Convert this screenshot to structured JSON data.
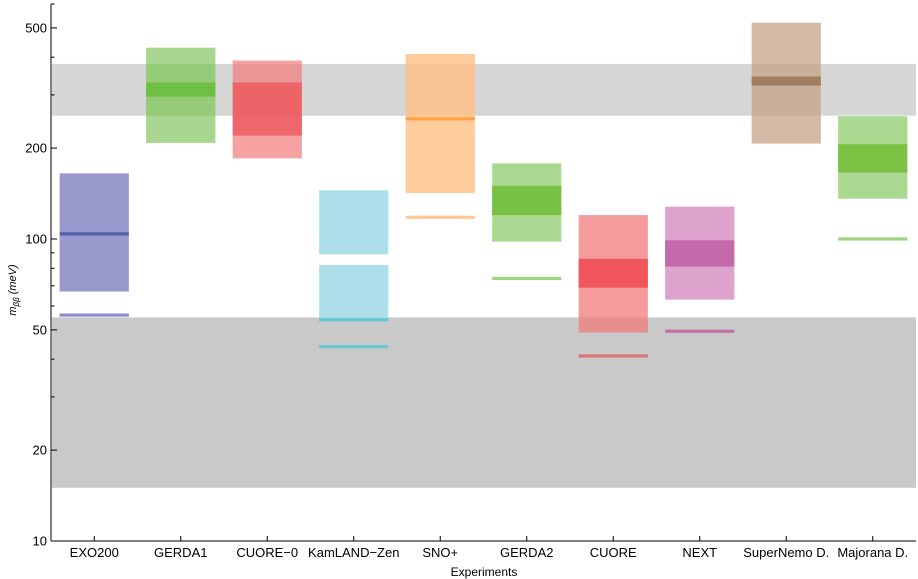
{
  "chart_data": {
    "type": "bar",
    "title": "",
    "xlabel": "Experiments",
    "ylabel": {
      "main": "m",
      "sub": "ββ",
      "units": " (meV)"
    },
    "yscale": "log",
    "ylim": [
      10,
      600
    ],
    "yticks": [
      10,
      20,
      50,
      100,
      200,
      500
    ],
    "grid": false,
    "legend": "none",
    "categories": [
      "EXO200",
      "GERDA1",
      "CUORE−0",
      "KamLAND−Zen",
      "SNO+",
      "GERDA2",
      "CUORE",
      "NEXT",
      "SuperNemo D.",
      "Majorana D."
    ],
    "reference_bands": [
      {
        "low": 256,
        "high": 380,
        "color": "#d6d6d6"
      },
      {
        "low": 15,
        "high": 55,
        "color": "#c9c9c9"
      }
    ],
    "series": [
      {
        "category": "EXO200",
        "color": "#7f7fc0",
        "bands": [
          {
            "low": 67,
            "high": 165,
            "opacity": 0.8
          }
        ],
        "lines": [
          {
            "value": 104,
            "color": "#4b5aa8"
          },
          {
            "value": 56,
            "color": "#7f7fc0"
          }
        ]
      },
      {
        "category": "GERDA1",
        "color": "#8cca6b",
        "bands": [
          {
            "low": 208,
            "high": 430,
            "opacity": 0.75
          },
          {
            "low": 255,
            "high": 380,
            "opacity": 0.5
          },
          {
            "low": 296,
            "high": 330,
            "color": "#6cbf3f",
            "opacity": 0.95
          }
        ],
        "lines": []
      },
      {
        "category": "CUORE−0",
        "color": "#f27a7a",
        "bands": [
          {
            "low": 185,
            "high": 390,
            "opacity": 0.7
          },
          {
            "low": 220,
            "high": 330,
            "color": "#ec4e52",
            "opacity": 0.7
          }
        ],
        "lines": []
      },
      {
        "category": "KamLAND−Zen",
        "color": "#9dd9e6",
        "bands": [
          {
            "low": 89,
            "high": 145,
            "opacity": 0.85
          },
          {
            "low": 54,
            "high": 82,
            "opacity": 0.85
          }
        ],
        "lines": [
          {
            "value": 54,
            "color": "#5cc7d4"
          },
          {
            "value": 44,
            "color": "#5cc7d4"
          }
        ]
      },
      {
        "category": "SNO+",
        "color": "#ffc288",
        "bands": [
          {
            "low": 142,
            "high": 410,
            "opacity": 0.85
          }
        ],
        "lines": [
          {
            "value": 250,
            "color": "#ff9f3f"
          },
          {
            "value": 118,
            "color": "#ffc288"
          }
        ]
      },
      {
        "category": "GERDA2",
        "color": "#93cf75",
        "bands": [
          {
            "low": 98,
            "high": 178,
            "opacity": 0.8
          },
          {
            "low": 120,
            "high": 150,
            "color": "#76c043",
            "opacity": 1
          }
        ],
        "lines": [
          {
            "value": 74,
            "color": "#93cf75"
          }
        ]
      },
      {
        "category": "CUORE",
        "color": "#f27a7a",
        "bands": [
          {
            "low": 49,
            "high": 120,
            "opacity": 0.75
          },
          {
            "low": 69,
            "high": 86,
            "color": "#ef5257",
            "opacity": 0.95
          }
        ],
        "lines": [
          {
            "value": 41,
            "color": "#d86b70"
          }
        ]
      },
      {
        "category": "NEXT",
        "color": "#d58cbf",
        "bands": [
          {
            "low": 63,
            "high": 128,
            "opacity": 0.8
          },
          {
            "low": 81,
            "high": 99,
            "color": "#c266a7",
            "opacity": 0.95
          }
        ],
        "lines": [
          {
            "value": 49.5,
            "color": "#c266a7"
          }
        ]
      },
      {
        "category": "SuperNemo D.",
        "color": "#c5a286",
        "bands": [
          {
            "low": 207,
            "high": 520,
            "opacity": 0.75
          },
          {
            "low": 322,
            "high": 345,
            "color": "#9b7a5b",
            "opacity": 0.9
          }
        ],
        "lines": []
      },
      {
        "category": "Majorana D.",
        "color": "#93cf75",
        "bands": [
          {
            "low": 136,
            "high": 255,
            "opacity": 0.8
          },
          {
            "low": 166,
            "high": 206,
            "color": "#7cc242",
            "opacity": 1
          }
        ],
        "lines": [
          {
            "value": 100,
            "color": "#93cf75"
          }
        ]
      }
    ]
  }
}
